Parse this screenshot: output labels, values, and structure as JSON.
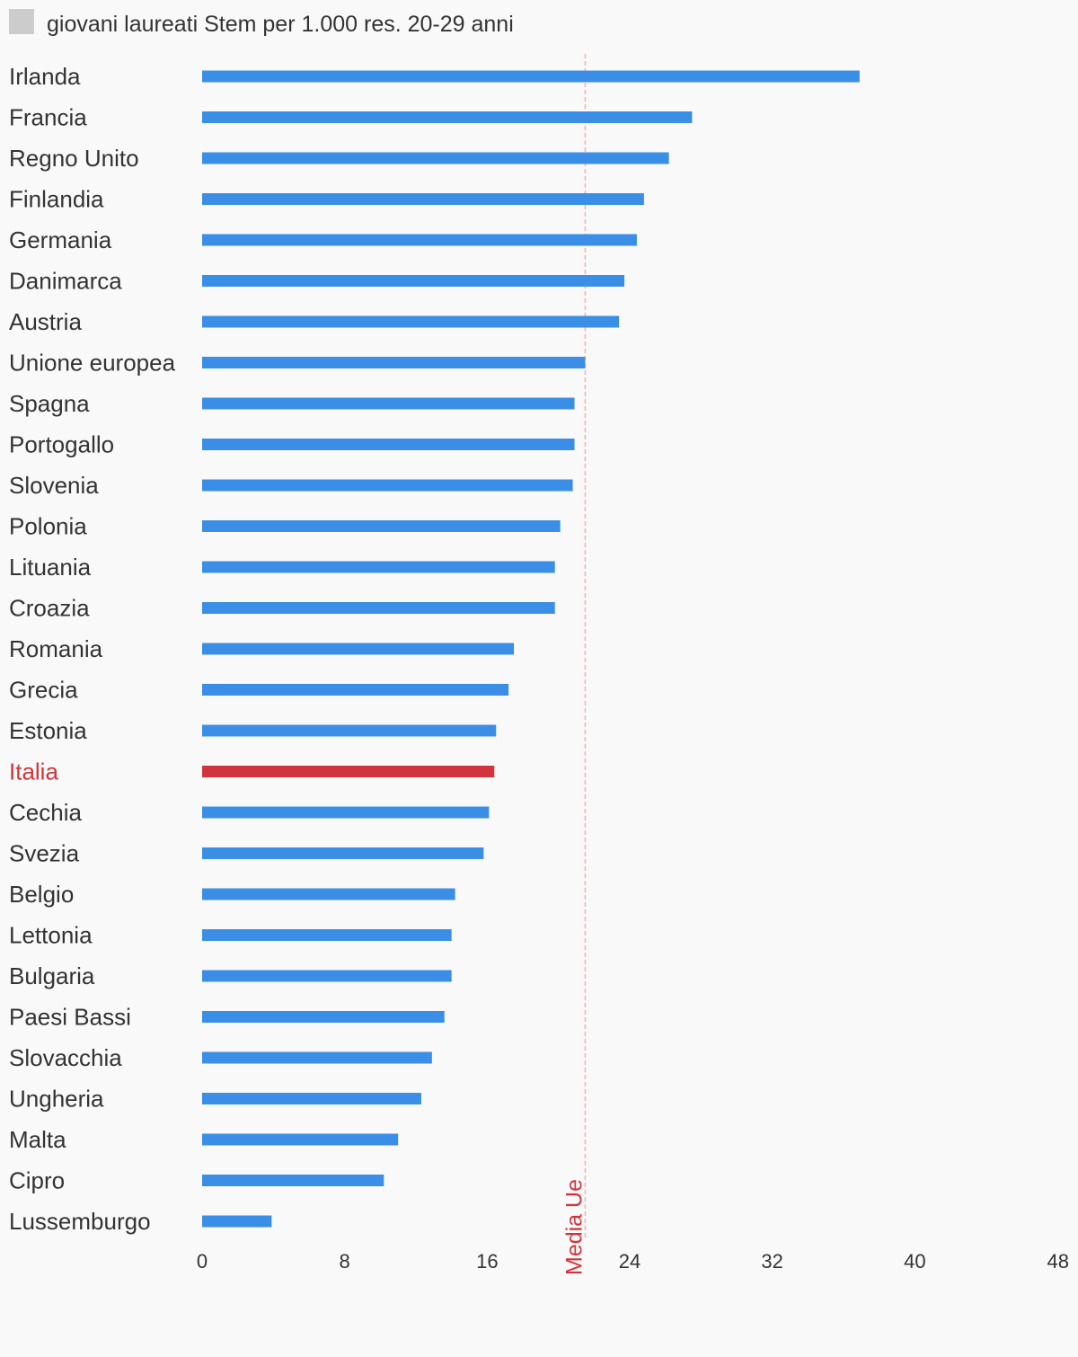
{
  "chart_data": {
    "type": "bar",
    "orientation": "horizontal",
    "legend": {
      "label": "giovani laureati Stem per 1.000 res. 20-29 anni",
      "position": "top-left",
      "swatch_color": "#cccccc"
    },
    "categories": [
      "Irlanda",
      "Francia",
      "Regno Unito",
      "Finlandia",
      "Germania",
      "Danimarca",
      "Austria",
      "Unione europea",
      "Spagna",
      "Portogallo",
      "Slovenia",
      "Polonia",
      "Lituania",
      "Croazia",
      "Romania",
      "Grecia",
      "Estonia",
      "Italia",
      "Cechia",
      "Svezia",
      "Belgio",
      "Lettonia",
      "Bulgaria",
      "Paesi Bassi",
      "Slovacchia",
      "Ungheria",
      "Malta",
      "Cipro",
      "Lussemburgo"
    ],
    "values": [
      36.9,
      27.5,
      26.2,
      24.8,
      24.4,
      23.7,
      23.4,
      21.5,
      20.9,
      20.9,
      20.8,
      20.1,
      19.8,
      19.8,
      17.5,
      17.2,
      16.5,
      16.4,
      16.1,
      15.8,
      14.2,
      14.0,
      14.0,
      13.6,
      12.9,
      12.3,
      11.0,
      10.2,
      3.9
    ],
    "x_ticks": [
      0,
      8,
      16,
      24,
      32,
      40,
      48
    ],
    "xlim": [
      0,
      48
    ],
    "grid": false,
    "reference_line": {
      "label": "Media Ue",
      "value": 21.5,
      "color": "#d1343c"
    },
    "highlight": {
      "category": "Italia",
      "color": "#d1343c"
    },
    "bar_color": "#3a8ee6",
    "label_color": "#333333"
  }
}
